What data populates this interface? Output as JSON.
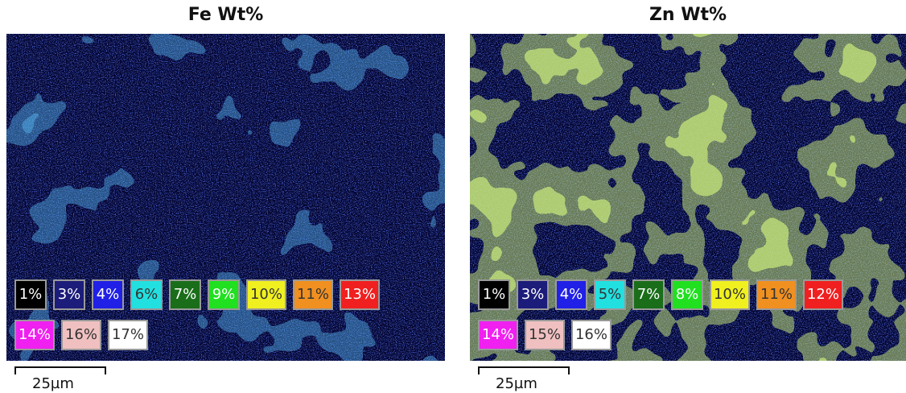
{
  "panels": [
    {
      "title": "Fe Wt%",
      "legend": [
        {
          "label": "1%",
          "color": "#000000"
        },
        {
          "label": "3%",
          "color": "#1c1c7a"
        },
        {
          "label": "4%",
          "color": "#2020e6"
        },
        {
          "label": "6%",
          "color": "#22e0e0"
        },
        {
          "label": "7%",
          "color": "#1a6e1a"
        },
        {
          "label": "9%",
          "color": "#20e020"
        },
        {
          "label": "10%",
          "color": "#f0f020"
        },
        {
          "label": "11%",
          "color": "#f09020"
        },
        {
          "label": "13%",
          "color": "#f02020"
        },
        {
          "label": "14%",
          "color": "#f020f0"
        },
        {
          "label": "16%",
          "color": "#f0c0c0"
        },
        {
          "label": "17%",
          "color": "#ffffff"
        }
      ],
      "scale_bar": "25µm"
    },
    {
      "title": "Zn Wt%",
      "legend": [
        {
          "label": "1%",
          "color": "#000000"
        },
        {
          "label": "3%",
          "color": "#1c1c7a"
        },
        {
          "label": "4%",
          "color": "#2020e6"
        },
        {
          "label": "5%",
          "color": "#22e0e0"
        },
        {
          "label": "7%",
          "color": "#1a6e1a"
        },
        {
          "label": "8%",
          "color": "#20e020"
        },
        {
          "label": "10%",
          "color": "#f0f020"
        },
        {
          "label": "11%",
          "color": "#f09020"
        },
        {
          "label": "12%",
          "color": "#f02020"
        },
        {
          "label": "14%",
          "color": "#f020f0"
        },
        {
          "label": "15%",
          "color": "#f0c0c0"
        },
        {
          "label": "16%",
          "color": "#ffffff"
        }
      ],
      "scale_bar": "25µm"
    }
  ]
}
